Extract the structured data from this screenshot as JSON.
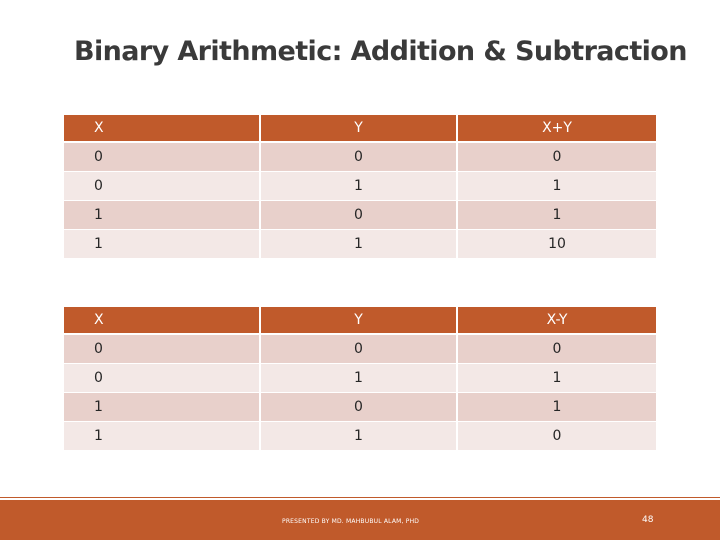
{
  "slide": {
    "title": "Binary Arithmetic: Addition & Subtraction",
    "footer_text": "PRESENTED BY MD. MAHBUBUL ALAM, PHD",
    "page_number": "48"
  },
  "colors": {
    "accent": "#c05a2b",
    "row_dark": "#e8d0cb",
    "row_light": "#f3e8e6",
    "title_text": "#3a3a3a"
  },
  "addition_table": {
    "headers": [
      "X",
      "Y",
      "X+Y"
    ],
    "rows": [
      [
        "0",
        "0",
        "0"
      ],
      [
        "0",
        "1",
        "1"
      ],
      [
        "1",
        "0",
        "1"
      ],
      [
        "1",
        "1",
        "10"
      ]
    ]
  },
  "subtraction_table": {
    "headers": [
      "X",
      "Y",
      "X-Y"
    ],
    "rows": [
      [
        "0",
        "0",
        "0"
      ],
      [
        "0",
        "1",
        "1"
      ],
      [
        "1",
        "0",
        "1"
      ],
      [
        "1",
        "1",
        "0"
      ]
    ]
  }
}
